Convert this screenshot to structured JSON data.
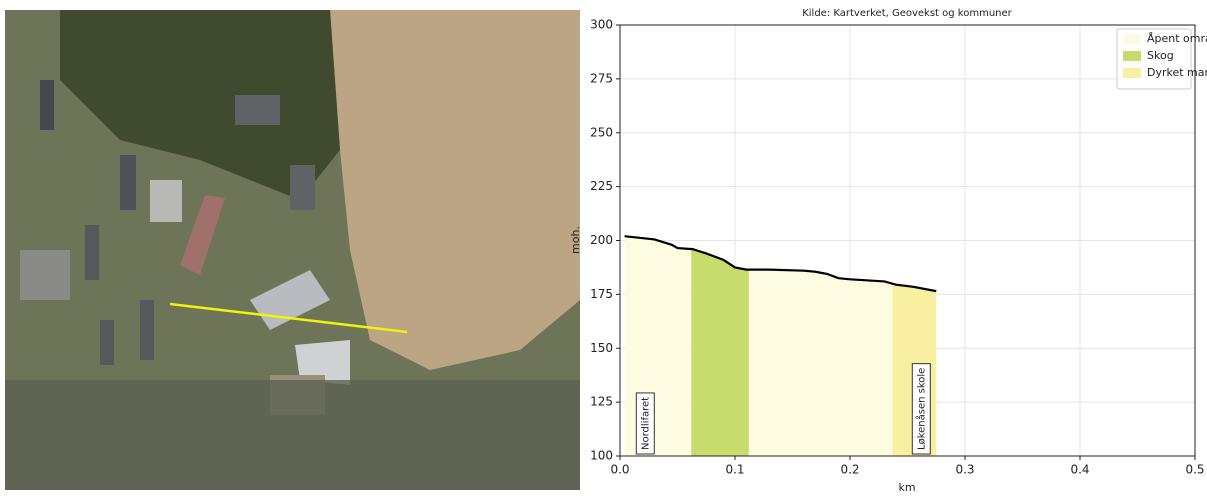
{
  "chart_data": {
    "type": "profile",
    "title": "Kilde: Kartverket, Geovekst og kommuner",
    "xlabel": "km",
    "ylabel": "moh.",
    "x": [
      0.004,
      0.03,
      0.045,
      0.05,
      0.063,
      0.075,
      0.09,
      0.1,
      0.11,
      0.13,
      0.16,
      0.17,
      0.18,
      0.19,
      0.2,
      0.23,
      0.24,
      0.255,
      0.275
    ],
    "values": [
      202,
      200.5,
      198,
      196.5,
      196,
      194,
      191,
      187.5,
      186.5,
      186.5,
      186,
      185.5,
      184.5,
      182.5,
      182,
      181,
      179.5,
      178.5,
      176.5
    ],
    "line_color": "#000000",
    "series": [
      {
        "name": "Åpent område",
        "color": "#fefce0",
        "spans": [
          [
            0.004,
            0.062
          ],
          [
            0.112,
            0.237
          ]
        ]
      },
      {
        "name": "Skog",
        "color": "#c8dc6e",
        "spans": [
          [
            0.062,
            0.112
          ]
        ]
      },
      {
        "name": "Dyrket mark",
        "color": "#f8f0a0",
        "spans": [
          [
            0.237,
            0.275
          ]
        ]
      }
    ],
    "annotations": [
      {
        "text": "Nordlifaret",
        "x": 0.022
      },
      {
        "text": "Løkenåsen skole",
        "x": 0.262
      }
    ],
    "xlim": [
      0,
      0.5
    ],
    "xticks": [
      {
        "value": 0,
        "label": "0.0"
      },
      0.1,
      0.2,
      0.3,
      0.4,
      0.5
    ],
    "ylim": [
      100,
      300
    ],
    "yticks": [
      100,
      125,
      150,
      175,
      200,
      225,
      250,
      275,
      300
    ],
    "grid": true,
    "legend": "upper right"
  }
}
